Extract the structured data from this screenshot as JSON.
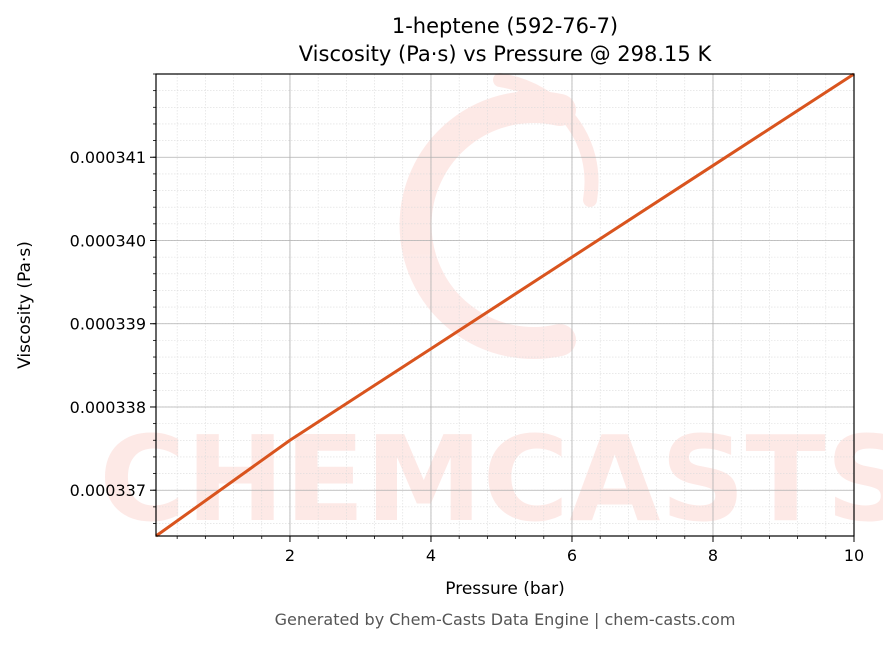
{
  "chart_data": {
    "type": "line",
    "title": "1-heptene (592-76-7)",
    "subtitle": "Viscosity (Pa·s) vs Pressure @ 298.15 K",
    "xlabel": "Pressure (bar)",
    "ylabel": "Viscosity (Pa·s)",
    "xlim": [
      0.1,
      10
    ],
    "ylim": [
      0.00033645,
      0.000342
    ],
    "xticks": [
      2,
      4,
      6,
      8,
      10
    ],
    "xtick_labels": [
      "2",
      "4",
      "6",
      "8",
      "10"
    ],
    "yticks": [
      0.000337,
      0.000338,
      0.000339,
      0.00034,
      0.000341
    ],
    "ytick_labels": [
      "0.000337",
      "0.000338",
      "0.000339",
      "0.000340",
      "0.000341"
    ],
    "grid": true,
    "series": [
      {
        "color": "#d9541e",
        "x": [
          0.1,
          2,
          4,
          6,
          8,
          10
        ],
        "y": [
          0.00033645,
          0.0003376,
          0.0003387,
          0.0003398,
          0.0003409,
          0.000342
        ]
      }
    ],
    "watermark": "CHEMCASTS",
    "footer": "Generated by Chem-Casts Data Engine | chem-casts.com"
  }
}
